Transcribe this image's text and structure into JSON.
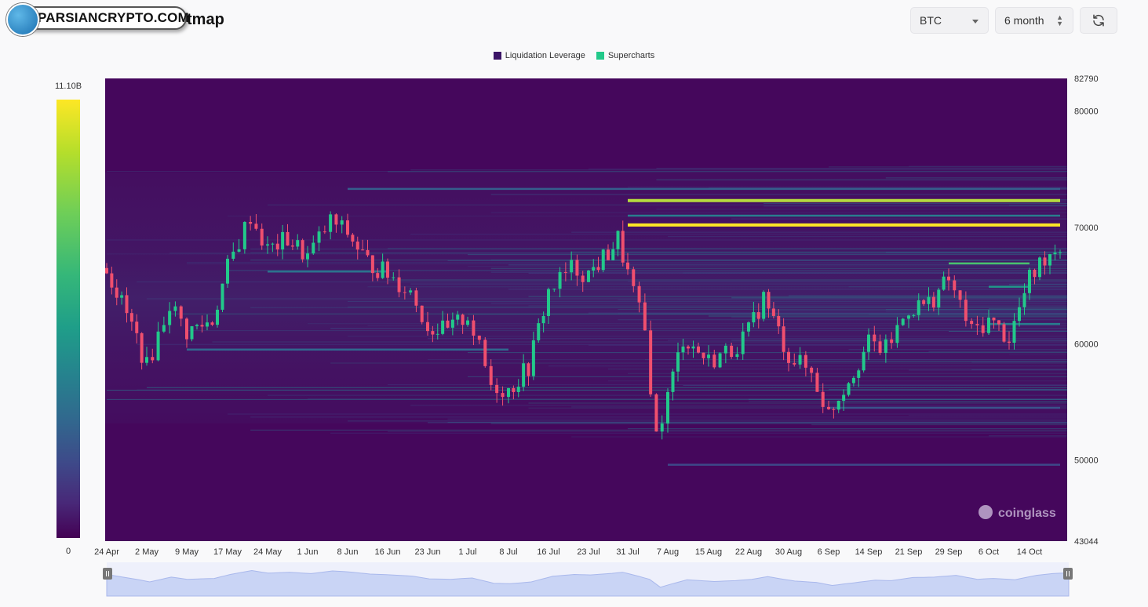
{
  "header": {
    "logo_text": "PARSIANCRYPTO.COM",
    "title_tail": "tmap"
  },
  "controls": {
    "symbol": "BTC",
    "range": "6 month",
    "refresh_icon": "refresh-icon"
  },
  "legend": [
    {
      "label": "Liquidation Leverage",
      "color": "#3b1466"
    },
    {
      "label": "Supercharts",
      "color": "#22c98a"
    }
  ],
  "colorbar": {
    "max_label": "11.10B",
    "min_label": "0"
  },
  "watermark": "coinglass",
  "chart_data": {
    "type": "heatmap",
    "title": "",
    "series": [
      {
        "name": "Liquidation Leverage",
        "kind": "heatmap"
      },
      {
        "name": "Supercharts",
        "kind": "candlestick"
      }
    ],
    "x_ticks": [
      "24 Apr",
      "2 May",
      "9 May",
      "17 May",
      "24 May",
      "1 Jun",
      "8 Jun",
      "16 Jun",
      "23 Jun",
      "1 Jul",
      "8 Jul",
      "16 Jul",
      "23 Jul",
      "31 Jul",
      "7 Aug",
      "15 Aug",
      "22 Aug",
      "30 Aug",
      "6 Sep",
      "14 Sep",
      "21 Sep",
      "29 Sep",
      "6 Oct",
      "14 Oct"
    ],
    "y_ticks": [
      82790,
      80000,
      70000,
      60000,
      50000,
      43044
    ],
    "ylim": [
      43044,
      82790
    ],
    "x_range": [
      "24 Apr",
      "20 Oct"
    ],
    "price_path": [
      [
        "24 Apr",
        66500
      ],
      [
        "30 Apr",
        60500
      ],
      [
        "2 May",
        58000
      ],
      [
        "6 May",
        63500
      ],
      [
        "9 May",
        61000
      ],
      [
        "14 May",
        62000
      ],
      [
        "17 May",
        66500
      ],
      [
        "21 May",
        71000
      ],
      [
        "24 May",
        68000
      ],
      [
        "28 May",
        69000
      ],
      [
        "1 Jun",
        67500
      ],
      [
        "5 Jun",
        70500
      ],
      [
        "8 Jun",
        69500
      ],
      [
        "12 Jun",
        67000
      ],
      [
        "16 Jun",
        66000
      ],
      [
        "20 Jun",
        64500
      ],
      [
        "23 Jun",
        61500
      ],
      [
        "27 Jun",
        61000
      ],
      [
        "1 Jul",
        62500
      ],
      [
        "5 Jul",
        56500
      ],
      [
        "8 Jul",
        56000
      ],
      [
        "12 Jul",
        58000
      ],
      [
        "16 Jul",
        64500
      ],
      [
        "20 Jul",
        66500
      ],
      [
        "23 Jul",
        66000
      ],
      [
        "27 Jul",
        67800
      ],
      [
        "29 Jul",
        69000
      ],
      [
        "31 Jul",
        66000
      ],
      [
        "3 Aug",
        61000
      ],
      [
        "5 Aug",
        52000
      ],
      [
        "7 Aug",
        55500
      ],
      [
        "10 Aug",
        60500
      ],
      [
        "15 Aug",
        58500
      ],
      [
        "19 Aug",
        59500
      ],
      [
        "22 Aug",
        61000
      ],
      [
        "25 Aug",
        64000
      ],
      [
        "30 Aug",
        59000
      ],
      [
        "3 Sep",
        57500
      ],
      [
        "6 Sep",
        54000
      ],
      [
        "10 Sep",
        57000
      ],
      [
        "14 Sep",
        60000
      ],
      [
        "17 Sep",
        59500
      ],
      [
        "21 Sep",
        63000
      ],
      [
        "25 Sep",
        63500
      ],
      [
        "29 Sep",
        65500
      ],
      [
        "3 Oct",
        61000
      ],
      [
        "6 Oct",
        62000
      ],
      [
        "10 Oct",
        60500
      ],
      [
        "14 Oct",
        65500
      ],
      [
        "17 Oct",
        67500
      ],
      [
        "20 Oct",
        68500
      ]
    ],
    "liquidation_bands": [
      {
        "price": 72300,
        "from": "31 Jul",
        "to": "20 Oct",
        "intensity": 0.95
      },
      {
        "price": 70200,
        "from": "31 Jul",
        "to": "20 Oct",
        "intensity": 1.0
      },
      {
        "price": 71000,
        "from": "31 Jul",
        "to": "20 Oct",
        "intensity": 0.6
      },
      {
        "price": 66900,
        "from": "29 Sep",
        "to": "14 Oct",
        "intensity": 0.85
      },
      {
        "price": 64900,
        "from": "6 Oct",
        "to": "14 Oct",
        "intensity": 0.7
      },
      {
        "price": 61700,
        "from": "6 Oct",
        "to": "20 Oct",
        "intensity": 0.6
      },
      {
        "price": 66200,
        "from": "24 May",
        "to": "16 Jun",
        "intensity": 0.55
      },
      {
        "price": 59500,
        "from": "9 May",
        "to": "8 Jul",
        "intensity": 0.5
      },
      {
        "price": 73300,
        "from": "8 Jun",
        "to": "20 Oct",
        "intensity": 0.45
      },
      {
        "price": 54500,
        "from": "6 Sep",
        "to": "20 Oct",
        "intensity": 0.4
      },
      {
        "price": 49600,
        "from": "7 Aug",
        "to": "20 Oct",
        "intensity": 0.35
      }
    ],
    "grid": false,
    "legend_position": "top-center"
  }
}
